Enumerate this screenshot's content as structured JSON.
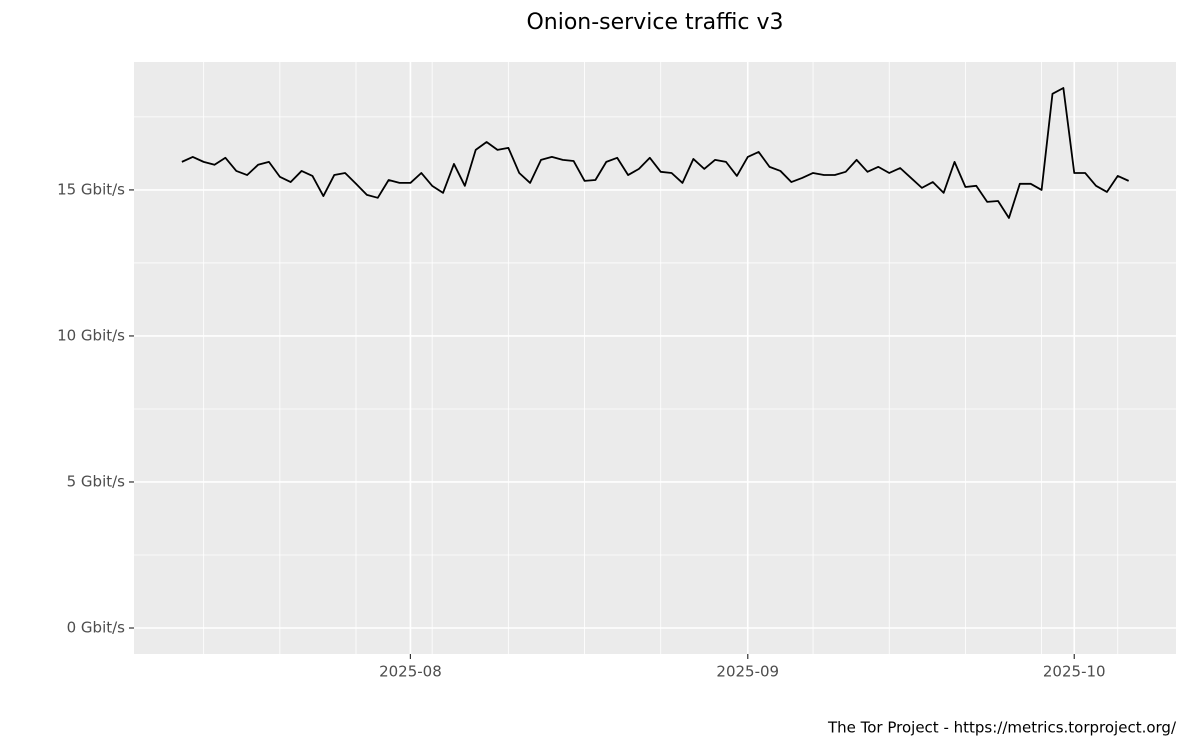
{
  "chart_data": {
    "type": "line",
    "title": "Onion-service traffic v3",
    "caption": "The Tor Project - https://metrics.torproject.org/",
    "series": [
      {
        "name": "v3",
        "color": "#000000",
        "values": [
          15.96,
          16.13,
          15.96,
          15.86,
          16.1,
          15.65,
          15.51,
          15.86,
          15.96,
          15.45,
          15.27,
          15.65,
          15.48,
          14.79,
          15.51,
          15.58,
          15.21,
          14.83,
          14.73,
          15.34,
          15.24,
          15.24,
          15.58,
          15.14,
          14.9,
          15.89,
          15.14,
          16.37,
          16.64,
          16.37,
          16.44,
          15.58,
          15.24,
          16.03,
          16.13,
          16.03,
          15.99,
          15.31,
          15.34,
          15.96,
          16.1,
          15.51,
          15.72,
          16.1,
          15.62,
          15.58,
          15.24,
          16.06,
          15.72,
          16.03,
          15.96,
          15.48,
          16.13,
          16.3,
          15.79,
          15.65,
          15.27,
          15.41,
          15.58,
          15.51,
          15.51,
          15.62,
          16.03,
          15.62,
          15.79,
          15.58,
          15.75,
          15.41,
          15.07,
          15.27,
          14.9,
          15.96,
          15.1,
          15.14,
          14.59,
          14.62,
          14.04,
          15.21,
          15.21,
          15.0,
          18.29,
          18.49,
          15.58,
          15.58,
          15.14,
          14.93,
          15.48,
          15.31
        ]
      }
    ],
    "xlim": [
      -4.4,
      91.35
    ],
    "xticks": [
      {
        "value": 21,
        "label": "2025-08"
      },
      {
        "value": 52,
        "label": "2025-09"
      },
      {
        "value": 82,
        "label": "2025-10"
      }
    ],
    "x_minor_grid": [
      2,
      9,
      16,
      23,
      30,
      37,
      44,
      58,
      65,
      72,
      79,
      86
    ],
    "ylim": [
      -0.89,
      19.38
    ],
    "yticks": [
      {
        "value": 0,
        "label": "0 Gbit/s"
      },
      {
        "value": 5,
        "label": "5 Gbit/s"
      },
      {
        "value": 10,
        "label": "10 Gbit/s"
      },
      {
        "value": 15,
        "label": "15 Gbit/s"
      }
    ],
    "y_minor_grid": [
      2.5,
      7.5,
      12.5,
      17.5
    ],
    "grid": true,
    "panel_color": "#ebebeb"
  }
}
